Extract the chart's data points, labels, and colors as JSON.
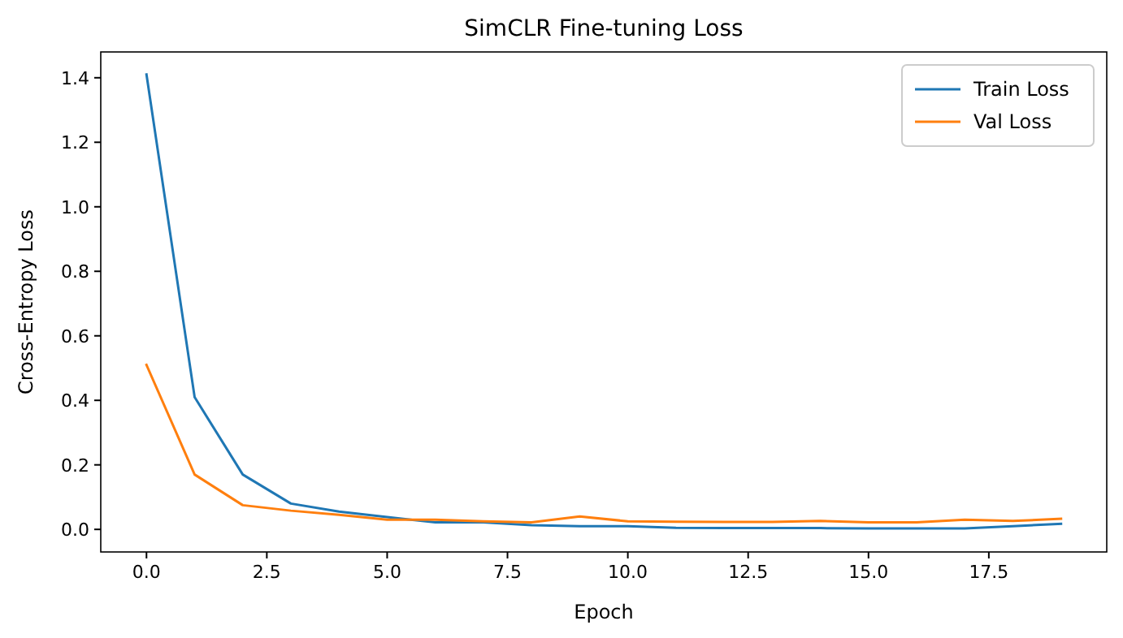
{
  "chart_data": {
    "type": "line",
    "title": "SimCLR Fine-tuning Loss",
    "xlabel": "Epoch",
    "ylabel": "Cross-Entropy Loss",
    "x": [
      0,
      1,
      2,
      3,
      4,
      5,
      6,
      7,
      8,
      9,
      10,
      11,
      12,
      13,
      14,
      15,
      16,
      17,
      18,
      19
    ],
    "series": [
      {
        "name": "Train Loss",
        "color": "#1f77b4",
        "values": [
          1.41,
          0.41,
          0.17,
          0.08,
          0.055,
          0.038,
          0.022,
          0.022,
          0.013,
          0.01,
          0.01,
          0.005,
          0.004,
          0.004,
          0.004,
          0.003,
          0.003,
          0.003,
          0.01,
          0.017
        ]
      },
      {
        "name": "Val Loss",
        "color": "#ff7f0e",
        "values": [
          0.51,
          0.17,
          0.075,
          0.058,
          0.045,
          0.03,
          0.03,
          0.025,
          0.022,
          0.04,
          0.025,
          0.024,
          0.023,
          0.023,
          0.026,
          0.022,
          0.022,
          0.03,
          0.026,
          0.033
        ]
      }
    ],
    "xlim": [
      -0.95,
      19.95
    ],
    "ylim": [
      -0.07,
      1.48
    ],
    "xticks": [
      {
        "value": 0,
        "label": "0.0"
      },
      {
        "value": 2.5,
        "label": "2.5"
      },
      {
        "value": 5,
        "label": "5.0"
      },
      {
        "value": 7.5,
        "label": "7.5"
      },
      {
        "value": 10,
        "label": "10.0"
      },
      {
        "value": 12.5,
        "label": "12.5"
      },
      {
        "value": 15,
        "label": "15.0"
      },
      {
        "value": 17.5,
        "label": "17.5"
      }
    ],
    "yticks": [
      {
        "value": 0,
        "label": "0.0"
      },
      {
        "value": 0.2,
        "label": "0.2"
      },
      {
        "value": 0.4,
        "label": "0.4"
      },
      {
        "value": 0.6,
        "label": "0.6"
      },
      {
        "value": 0.8,
        "label": "0.8"
      },
      {
        "value": 1,
        "label": "1.0"
      },
      {
        "value": 1.2,
        "label": "1.2"
      },
      {
        "value": 1.4,
        "label": "1.4"
      }
    ],
    "legend": "top right",
    "grid": false
  }
}
